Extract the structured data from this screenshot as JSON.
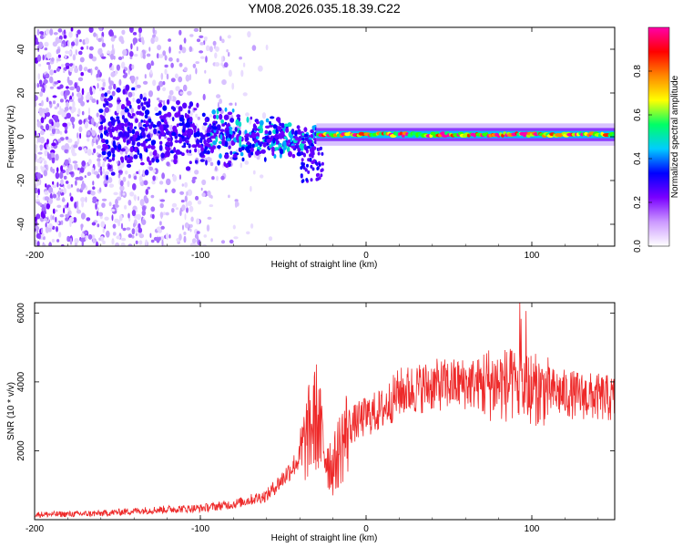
{
  "chart_data": [
    {
      "type": "heatmap",
      "title": "YM08.2026.035.18.39.C22",
      "xlabel": "Height of straight line (km)",
      "ylabel": "Frequency (Hz)",
      "xlim": [
        -200,
        150
      ],
      "ylim": [
        -50,
        50
      ],
      "x_ticks": [
        -200,
        -100,
        0,
        100
      ],
      "y_ticks": [
        -40,
        -20,
        0,
        20,
        40
      ],
      "colorbar": {
        "label": "Normalized spectral amplitude",
        "range": [
          0.0,
          1.0
        ],
        "ticks": [
          0.0,
          0.2,
          0.4,
          0.6,
          0.8
        ],
        "tick_labels": [
          "0.0",
          "0.2",
          "0.4",
          "0.6",
          "0.8"
        ],
        "colors": [
          "#ffffff",
          "#cc99ff",
          "#7a00ff",
          "#0000ff",
          "#00ccff",
          "#00ff66",
          "#ffff00",
          "#ff8800",
          "#ff0000",
          "#ff00aa"
        ]
      },
      "features": {
        "scatter_region_km": [
          -200,
          -60
        ],
        "band_center_hz": 1,
        "band_halfwidth_hz": 3,
        "spread_region_km": [
          -160,
          -30
        ]
      }
    },
    {
      "type": "line",
      "xlabel": "Height of straight line (km)",
      "ylabel": "SNR (10 * v/v)",
      "xlim": [
        -200,
        150
      ],
      "ylim": [
        0,
        6300
      ],
      "x_ticks": [
        -200,
        -100,
        0,
        100
      ],
      "y_ticks": [
        2000,
        4000,
        6000
      ],
      "color": "#ee2a2a",
      "series": [
        {
          "name": "SNR",
          "x": [
            -200,
            -180,
            -160,
            -140,
            -120,
            -100,
            -80,
            -60,
            -50,
            -40,
            -35,
            -30,
            -25,
            -20,
            -15,
            -10,
            0,
            10,
            20,
            30,
            40,
            60,
            80,
            100,
            120,
            140,
            150
          ],
          "y": [
            150,
            160,
            180,
            250,
            300,
            330,
            450,
            700,
            1200,
            1800,
            2500,
            3000,
            2000,
            1500,
            2200,
            2700,
            3000,
            3200,
            3700,
            3800,
            3900,
            3950,
            3950,
            3800,
            3650,
            3550,
            3500
          ]
        }
      ]
    }
  ]
}
